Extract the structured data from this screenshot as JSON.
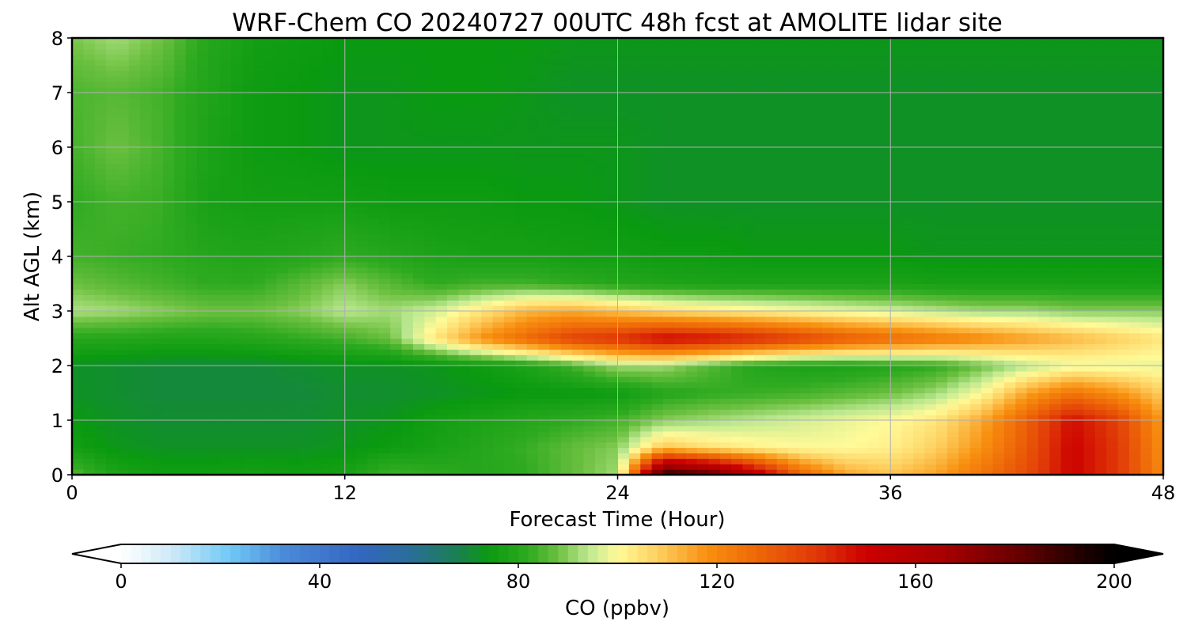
{
  "chart_data": {
    "type": "heatmap",
    "title": "WRF-Chem CO  20240727 00UTC 48h fcst at AMOLITE lidar site",
    "xlabel": "Forecast Time (Hour)",
    "ylabel": "Alt AGL (km)",
    "xlim": [
      0,
      48
    ],
    "ylim": [
      0,
      8
    ],
    "xticks": [
      "0",
      "12",
      "24",
      "36",
      "48"
    ],
    "yticks": [
      "0",
      "1",
      "2",
      "3",
      "4",
      "5",
      "6",
      "7",
      "8"
    ],
    "grid": true,
    "x_hours": [
      0,
      2,
      4,
      6,
      8,
      10,
      12,
      14,
      16,
      18,
      20,
      22,
      24,
      26,
      28,
      30,
      32,
      34,
      36,
      38,
      40,
      42,
      44,
      46,
      48
    ],
    "z_levels_km": [
      0,
      0.5,
      1,
      1.5,
      2,
      2.5,
      3,
      3.5,
      4,
      5,
      6,
      7,
      8
    ],
    "values_ppbv": [
      [
        86,
        78,
        76,
        76,
        77,
        76,
        77,
        84,
        82,
        80,
        82,
        87,
        92,
        195,
        185,
        160,
        130,
        115,
        110,
        115,
        125,
        135,
        150,
        140,
        120
      ],
      [
        76,
        73,
        72,
        72,
        72,
        72,
        73,
        75,
        77,
        80,
        83,
        87,
        90,
        110,
        105,
        102,
        100,
        100,
        102,
        108,
        118,
        132,
        150,
        140,
        118
      ],
      [
        74,
        72,
        71,
        71,
        71,
        71,
        72,
        73,
        76,
        78,
        80,
        82,
        84,
        90,
        92,
        94,
        96,
        98,
        100,
        104,
        114,
        130,
        148,
        138,
        116
      ],
      [
        72,
        71,
        70,
        70,
        70,
        70,
        71,
        71,
        72,
        73,
        74,
        74,
        75,
        80,
        82,
        83,
        84,
        86,
        88,
        92,
        100,
        115,
        125,
        118,
        108
      ],
      [
        72,
        71,
        70,
        70,
        70,
        71,
        72,
        72,
        73,
        75,
        78,
        84,
        92,
        92,
        86,
        80,
        78,
        78,
        80,
        82,
        88,
        94,
        98,
        98,
        98
      ],
      [
        80,
        80,
        79,
        79,
        80,
        82,
        84,
        88,
        104,
        118,
        128,
        138,
        142,
        150,
        148,
        144,
        138,
        132,
        128,
        124,
        120,
        116,
        112,
        108,
        104
      ],
      [
        93,
        92,
        90,
        88,
        88,
        90,
        94,
        92,
        96,
        104,
        112,
        114,
        110,
        106,
        104,
        102,
        100,
        98,
        96,
        94,
        92,
        92,
        90,
        90,
        90
      ],
      [
        88,
        86,
        84,
        82,
        82,
        86,
        90,
        86,
        82,
        84,
        84,
        82,
        80,
        79,
        78,
        78,
        78,
        78,
        78,
        77,
        77,
        77,
        77,
        77,
        77
      ],
      [
        84,
        83,
        82,
        80,
        79,
        80,
        82,
        80,
        78,
        77,
        77,
        76,
        76,
        75,
        75,
        74,
        74,
        74,
        74,
        73,
        73,
        73,
        73,
        73,
        73
      ],
      [
        82,
        84,
        83,
        77,
        76,
        76,
        76,
        75,
        75,
        75,
        74,
        74,
        73,
        72,
        72,
        72,
        72,
        72,
        72,
        72,
        72,
        72,
        72,
        72,
        72
      ],
      [
        84,
        88,
        84,
        78,
        75,
        74,
        73,
        73,
        73,
        73,
        73,
        73,
        73,
        72,
        72,
        72,
        72,
        72,
        72,
        72,
        72,
        72,
        72,
        72,
        72
      ],
      [
        85,
        86,
        84,
        79,
        75,
        74,
        73,
        73,
        74,
        74,
        73,
        72,
        72,
        72,
        72,
        72,
        72,
        72,
        72,
        72,
        72,
        72,
        72,
        72,
        72
      ],
      [
        89,
        92,
        88,
        80,
        76,
        75,
        74,
        74,
        74,
        74,
        74,
        73,
        73,
        73,
        73,
        73,
        73,
        73,
        73,
        73,
        73,
        73,
        73,
        73,
        73
      ]
    ],
    "colorbar": {
      "label": "CO  (ppbv)",
      "ticks": [
        "0",
        "40",
        "80",
        "120",
        "160",
        "200"
      ],
      "min": 0,
      "max": 200,
      "extend": "both",
      "colors": [
        {
          "v": 0,
          "c": "#ffffff"
        },
        {
          "v": 10,
          "c": "#cfeaf8"
        },
        {
          "v": 22,
          "c": "#6fc8f6"
        },
        {
          "v": 33,
          "c": "#4a8ad8"
        },
        {
          "v": 48,
          "c": "#3366c0"
        },
        {
          "v": 58,
          "c": "#2a6e9a"
        },
        {
          "v": 68,
          "c": "#1a8050"
        },
        {
          "v": 74,
          "c": "#0a9a10"
        },
        {
          "v": 82,
          "c": "#2eaa20"
        },
        {
          "v": 88,
          "c": "#6cc040"
        },
        {
          "v": 94,
          "c": "#bce890"
        },
        {
          "v": 100,
          "c": "#fffa98"
        },
        {
          "v": 108,
          "c": "#fed060"
        },
        {
          "v": 118,
          "c": "#f89010"
        },
        {
          "v": 128,
          "c": "#ee6808"
        },
        {
          "v": 140,
          "c": "#e03808"
        },
        {
          "v": 150,
          "c": "#cc0000"
        },
        {
          "v": 165,
          "c": "#aa0000"
        },
        {
          "v": 180,
          "c": "#6a0000"
        },
        {
          "v": 192,
          "c": "#280000"
        },
        {
          "v": 200,
          "c": "#000000"
        }
      ]
    }
  }
}
